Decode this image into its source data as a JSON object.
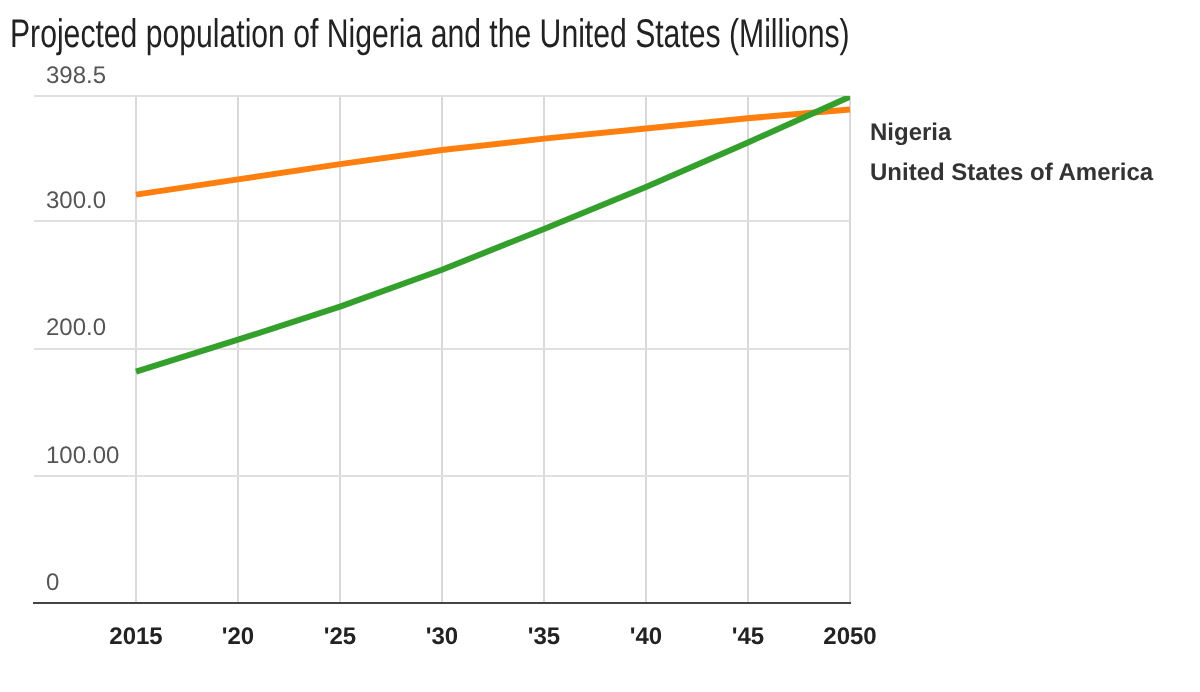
{
  "chart_data": {
    "type": "line",
    "title": "Projected population of Nigeria and the United States (Millions)",
    "x": [
      2015,
      2020,
      2025,
      2030,
      2035,
      2040,
      2045,
      2050
    ],
    "series": [
      {
        "name": "Nigeria",
        "color": "#33a02c",
        "values": [
          182,
          207,
          233,
          262,
          294,
          327,
          362,
          398
        ]
      },
      {
        "name": "United States of America",
        "color": "#ff7f0e",
        "values": [
          321,
          333,
          345,
          356,
          365,
          373,
          381,
          388
        ]
      }
    ],
    "xlim": [
      2010,
      2050
    ],
    "xticks": [
      2015,
      {
        "value": 2020,
        "label": "'20"
      },
      {
        "value": 2025,
        "label": "'25"
      },
      {
        "value": 2030,
        "label": "'30"
      },
      {
        "value": 2035,
        "label": "'35"
      },
      {
        "value": 2040,
        "label": "'40"
      },
      {
        "value": 2045,
        "label": "'45"
      },
      2050
    ],
    "ylim": [
      0,
      398.5
    ],
    "yticks": [
      0,
      {
        "value": 100,
        "label": "100.00"
      },
      {
        "value": 200,
        "label": "200.0"
      },
      {
        "value": 300,
        "label": "300.0"
      },
      398.5
    ],
    "grid": true,
    "legend": "right",
    "marker": "none",
    "line_style": "solid"
  }
}
